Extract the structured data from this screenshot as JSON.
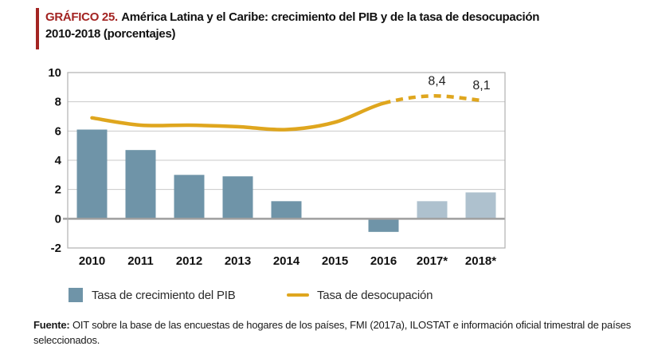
{
  "header": {
    "label": "GRÁFICO 25.",
    "title_rest": " América Latina y el Caribe: crecimiento del PIB y de la tasa de desocupación",
    "title_line2": "2010-2018 (porcentajes)",
    "accent_color": "#a32422",
    "label_color": "#a32422"
  },
  "chart_data": {
    "type": "bar+line combo",
    "title": "América Latina y el Caribe: crecimiento del PIB y de la tasa de desocupación 2010-2018 (porcentajes)",
    "categories": [
      "2010",
      "2011",
      "2012",
      "2013",
      "2014",
      "2015",
      "2016",
      "2017*",
      "2018*"
    ],
    "series": [
      {
        "name": "Tasa de crecimiento del PIB",
        "type": "bar",
        "values": [
          6.1,
          4.7,
          3.0,
          2.9,
          1.2,
          0.0,
          -0.9,
          1.2,
          1.8
        ],
        "color": "#6f94a8",
        "projection_color": "#aec1ce",
        "projection_from_index": 7
      },
      {
        "name": "Tasa de desocupación",
        "type": "line",
        "values": [
          6.9,
          6.4,
          6.4,
          6.3,
          6.1,
          6.6,
          7.9,
          8.4,
          8.1
        ],
        "color": "#dfa61e",
        "dashed_from_index": 6,
        "point_labels": [
          {
            "index": 7,
            "text": "8,4",
            "dx": 6,
            "dy": -14
          },
          {
            "index": 8,
            "text": "8,1",
            "dx": 1,
            "dy": -14
          }
        ]
      }
    ],
    "xlabel": "",
    "ylabel": "",
    "ylim": [
      -2,
      10
    ],
    "yticks": [
      10,
      8,
      6,
      4,
      2,
      0,
      -2
    ],
    "grid": true,
    "gridline_color": "#c9c9c9",
    "zeroline_color": "#9f9f9f",
    "border_color": "#b0b0b0",
    "axis_text_color": "#111111",
    "legend_position": "bottom"
  },
  "legend": {
    "items": [
      {
        "label": "Tasa de crecimiento del PIB",
        "marker": "square",
        "color": "#6f94a8"
      },
      {
        "label": "Tasa de desocupación",
        "marker": "line",
        "color": "#dfa61e"
      }
    ]
  },
  "footer": {
    "label": "Fuente:",
    "text": " OIT sobre la base de las encuestas de hogares de los países, FMI (2017a), ILOSTAT e información oficial trimestral de países seleccionados."
  }
}
